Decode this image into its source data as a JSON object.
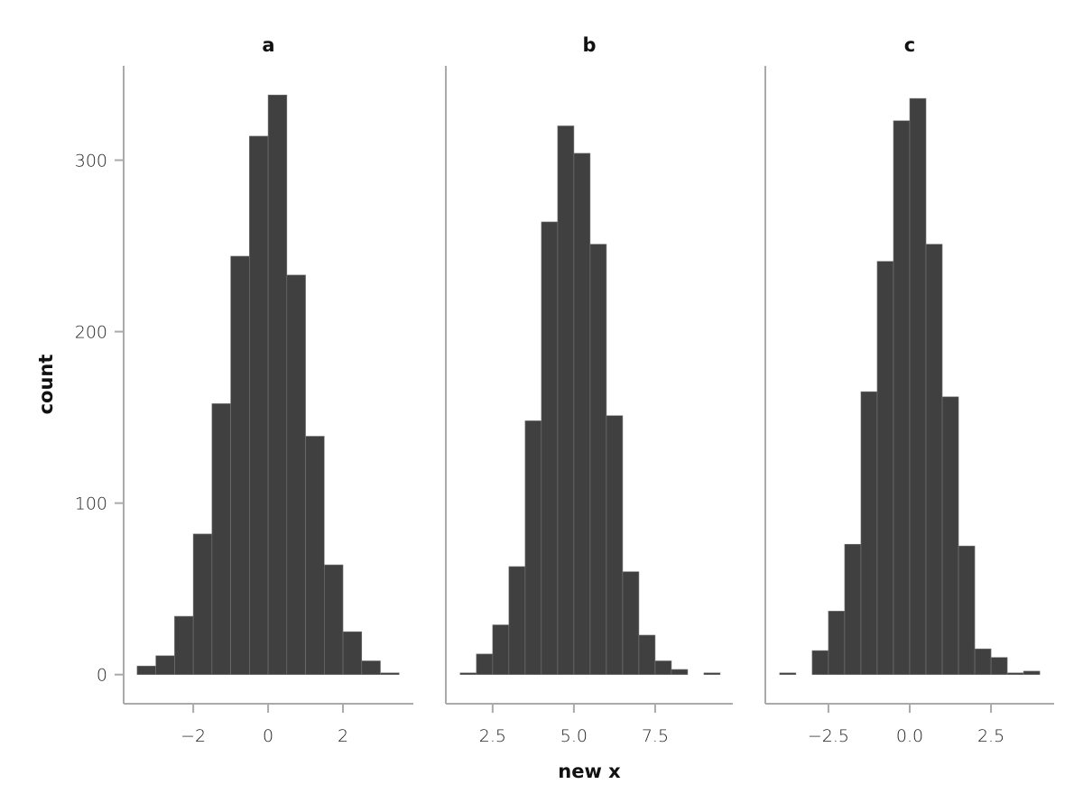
{
  "chart_data": {
    "type": "bar",
    "subtype": "faceted-histogram",
    "xlabel": "new x",
    "ylabel": "count",
    "ylim": [
      -17,
      355
    ],
    "yticks": [
      0,
      100,
      200,
      300
    ],
    "bar_color": "#404040",
    "bar_edge_color": "#777777",
    "axis_color": "#aaaaaa",
    "bin_width": 0.5,
    "panels": [
      {
        "title": "a",
        "xlim": [
          -3.86,
          3.88
        ],
        "xticks": [
          -2,
          0,
          2
        ],
        "xtick_labels": [
          "−2",
          "0",
          "2"
        ],
        "bin_start": -3.5,
        "counts": [
          5,
          11,
          34,
          82,
          158,
          244,
          314,
          338,
          233,
          139,
          64,
          25,
          8,
          1
        ]
      },
      {
        "title": "b",
        "xlim": [
          1.06,
          9.89
        ],
        "xticks": [
          2.5,
          5.0,
          7.5
        ],
        "xtick_labels": [
          "2.5",
          "5.0",
          "7.5"
        ],
        "bin_start": 1.5,
        "counts": [
          1,
          12,
          29,
          63,
          148,
          264,
          320,
          304,
          251,
          151,
          60,
          23,
          8,
          3,
          0,
          1
        ]
      },
      {
        "title": "c",
        "xlim": [
          -4.44,
          4.44
        ],
        "xticks": [
          -2.5,
          0.0,
          2.5
        ],
        "xtick_labels": [
          "−2.5",
          "0.0",
          "2.5"
        ],
        "bin_start": -4.0,
        "counts": [
          1,
          0,
          14,
          37,
          76,
          165,
          241,
          323,
          336,
          251,
          162,
          75,
          15,
          10,
          1,
          2
        ]
      }
    ]
  }
}
